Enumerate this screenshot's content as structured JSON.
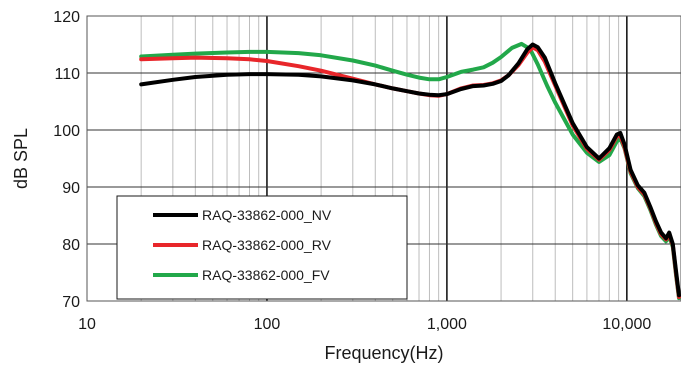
{
  "chart_data": {
    "type": "line",
    "xlabel": "Frequency(Hz)",
    "ylabel": "dB SPL",
    "x_scale": "log",
    "xlim": [
      10,
      20000
    ],
    "ylim": [
      70,
      120
    ],
    "x_ticks": [
      10,
      100,
      1000,
      10000
    ],
    "x_tick_labels": [
      "10",
      "100",
      "1,000",
      "10,000"
    ],
    "y_ticks": [
      70,
      80,
      90,
      100,
      110,
      120
    ],
    "y_tick_labels": [
      "70",
      "80",
      "90",
      "100",
      "110",
      "120"
    ],
    "grid": true,
    "legend_position": "bottom-left",
    "series": [
      {
        "name": "RAQ-33862-000_NV",
        "color": "#000000",
        "points": [
          [
            20,
            108.0
          ],
          [
            30,
            108.8
          ],
          [
            40,
            109.3
          ],
          [
            60,
            109.7
          ],
          [
            80,
            109.8
          ],
          [
            100,
            109.8
          ],
          [
            150,
            109.7
          ],
          [
            200,
            109.4
          ],
          [
            300,
            108.7
          ],
          [
            400,
            108.0
          ],
          [
            500,
            107.3
          ],
          [
            600,
            106.8
          ],
          [
            700,
            106.4
          ],
          [
            800,
            106.2
          ],
          [
            900,
            106.1
          ],
          [
            1000,
            106.3
          ],
          [
            1200,
            107.2
          ],
          [
            1400,
            107.7
          ],
          [
            1600,
            107.8
          ],
          [
            1800,
            108.1
          ],
          [
            2000,
            108.6
          ],
          [
            2200,
            109.6
          ],
          [
            2500,
            111.7
          ],
          [
            2800,
            114.2
          ],
          [
            3000,
            115.0
          ],
          [
            3200,
            114.5
          ],
          [
            3500,
            112.7
          ],
          [
            4000,
            108.2
          ],
          [
            5000,
            101.2
          ],
          [
            6000,
            97.0
          ],
          [
            7000,
            95.0
          ],
          [
            8000,
            96.8
          ],
          [
            8800,
            99.2
          ],
          [
            9200,
            99.5
          ],
          [
            9700,
            97.5
          ],
          [
            10500,
            93.0
          ],
          [
            11500,
            90.3
          ],
          [
            12500,
            89.0
          ],
          [
            13500,
            86.5
          ],
          [
            14500,
            84.0
          ],
          [
            15500,
            82.0
          ],
          [
            16500,
            81.0
          ],
          [
            17200,
            82.0
          ],
          [
            18000,
            80.0
          ],
          [
            18800,
            75.0
          ],
          [
            19500,
            71.0
          ]
        ]
      },
      {
        "name": "RAQ-33862-000_RV",
        "color": "#e8262a",
        "points": [
          [
            20,
            112.4
          ],
          [
            30,
            112.6
          ],
          [
            40,
            112.7
          ],
          [
            60,
            112.6
          ],
          [
            80,
            112.4
          ],
          [
            100,
            112.1
          ],
          [
            150,
            111.2
          ],
          [
            200,
            110.4
          ],
          [
            300,
            109.0
          ],
          [
            400,
            108.0
          ],
          [
            500,
            107.3
          ],
          [
            600,
            106.8
          ],
          [
            700,
            106.4
          ],
          [
            800,
            106.1
          ],
          [
            900,
            106.0
          ],
          [
            1000,
            106.3
          ],
          [
            1200,
            107.3
          ],
          [
            1400,
            107.8
          ],
          [
            1600,
            107.9
          ],
          [
            1800,
            108.2
          ],
          [
            2000,
            108.7
          ],
          [
            2200,
            109.6
          ],
          [
            2500,
            111.4
          ],
          [
            2800,
            113.6
          ],
          [
            3000,
            114.5
          ],
          [
            3200,
            114.0
          ],
          [
            3500,
            112.0
          ],
          [
            4000,
            107.8
          ],
          [
            5000,
            100.8
          ],
          [
            6000,
            96.7
          ],
          [
            7000,
            94.8
          ],
          [
            8000,
            96.5
          ],
          [
            8800,
            98.9
          ],
          [
            9200,
            99.0
          ],
          [
            9700,
            97.0
          ],
          [
            10500,
            92.7
          ],
          [
            11500,
            90.0
          ],
          [
            12500,
            88.7
          ],
          [
            13500,
            86.3
          ],
          [
            14500,
            83.7
          ],
          [
            15500,
            81.7
          ],
          [
            16500,
            80.8
          ],
          [
            17200,
            81.6
          ],
          [
            18000,
            79.8
          ],
          [
            18800,
            74.6
          ],
          [
            19500,
            70.7
          ]
        ]
      },
      {
        "name": "RAQ-33862-000_FV",
        "color": "#22a84a",
        "points": [
          [
            20,
            112.9
          ],
          [
            30,
            113.2
          ],
          [
            40,
            113.4
          ],
          [
            60,
            113.6
          ],
          [
            80,
            113.7
          ],
          [
            100,
            113.7
          ],
          [
            150,
            113.5
          ],
          [
            200,
            113.1
          ],
          [
            300,
            112.2
          ],
          [
            400,
            111.3
          ],
          [
            500,
            110.4
          ],
          [
            600,
            109.7
          ],
          [
            700,
            109.2
          ],
          [
            800,
            108.9
          ],
          [
            900,
            108.9
          ],
          [
            1000,
            109.3
          ],
          [
            1200,
            110.2
          ],
          [
            1400,
            110.6
          ],
          [
            1600,
            111.0
          ],
          [
            1800,
            111.8
          ],
          [
            2000,
            112.8
          ],
          [
            2300,
            114.4
          ],
          [
            2600,
            115.1
          ],
          [
            2900,
            114.2
          ],
          [
            3200,
            111.5
          ],
          [
            3600,
            107.8
          ],
          [
            4000,
            104.8
          ],
          [
            5000,
            99.2
          ],
          [
            6000,
            96.0
          ],
          [
            7000,
            94.4
          ],
          [
            8000,
            95.6
          ],
          [
            8800,
            98.0
          ],
          [
            9200,
            98.5
          ],
          [
            9700,
            96.8
          ],
          [
            10500,
            92.4
          ],
          [
            11500,
            89.8
          ],
          [
            12500,
            88.4
          ],
          [
            13500,
            86.0
          ],
          [
            14500,
            83.4
          ],
          [
            15500,
            81.4
          ],
          [
            16500,
            80.5
          ],
          [
            17200,
            81.3
          ],
          [
            18000,
            79.5
          ],
          [
            18800,
            74.3
          ],
          [
            19500,
            70.5
          ]
        ]
      }
    ]
  }
}
